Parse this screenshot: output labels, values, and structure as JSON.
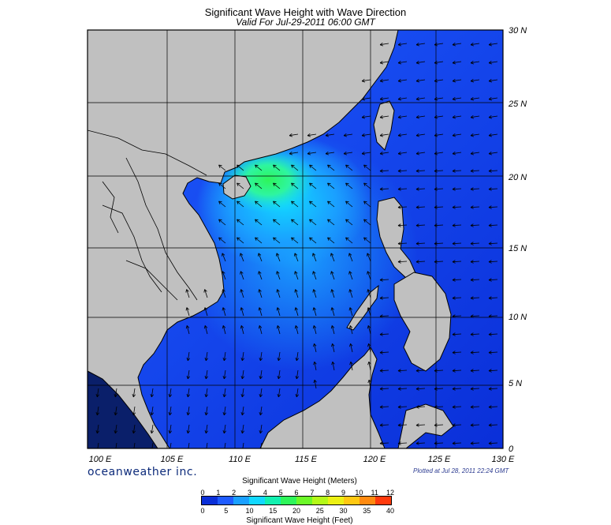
{
  "title": "Significant Wave Height with Wave Direction",
  "subtitle": "Valid For Jul-29-2011 06:00 GMT",
  "lat_labels": [
    "30 N",
    "25 N",
    "20 N",
    "15 N",
    "10 N",
    "5 N",
    "0"
  ],
  "lon_labels": [
    "100 E",
    "105 E",
    "110 E",
    "115 E",
    "120 E",
    "125 E",
    "130 E"
  ],
  "brand": "oceanweather inc.",
  "plotted": "Plotted at Jul 28, 2011 22:24 GMT",
  "colorbar": {
    "meters_title": "Significant Wave Height (Meters)",
    "feet_title": "Significant Wave Height (Feet)",
    "meters_ticks": [
      "0",
      "1",
      "2",
      "3",
      "4",
      "5",
      "6",
      "7",
      "8",
      "9",
      "10",
      "11",
      "12"
    ],
    "feet_ticks": [
      "0",
      "5",
      "10",
      "15",
      "20",
      "25",
      "30",
      "35",
      "40"
    ],
    "colors": [
      "#0a2fd8",
      "#1f5cff",
      "#1aa0ff",
      "#12d8ff",
      "#12f0b0",
      "#2ef55a",
      "#6cf828",
      "#b4f818",
      "#ecf014",
      "#ffc812",
      "#ff8a10",
      "#ff3a0c"
    ]
  },
  "colors": {
    "land": "#c0c0c0",
    "deep_blue": "#0a2fd8",
    "mid_blue": "#1f5cff",
    "light_blue": "#1aa0ff",
    "cyan": "#12d8ff",
    "green": "#2ef55a"
  }
}
